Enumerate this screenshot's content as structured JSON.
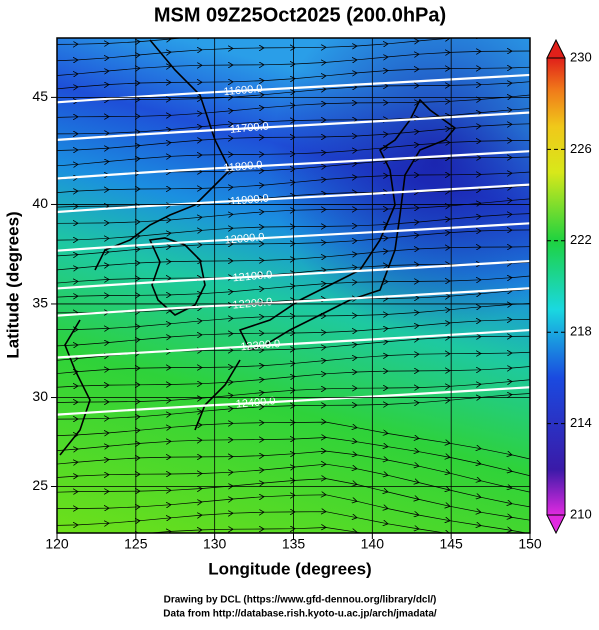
{
  "title": "MSM 09Z25Oct2025 (200.0hPa)",
  "x_axis": {
    "label": "Longitude (degrees)",
    "lim": [
      120,
      150
    ],
    "ticks": [
      120,
      125,
      130,
      135,
      140,
      145,
      150
    ]
  },
  "y_axis": {
    "label": "Latitude  (degrees)",
    "lim": [
      22.3,
      47.6
    ],
    "ticks": [
      25,
      30,
      35,
      40,
      45
    ]
  },
  "colorbar": {
    "lim": [
      210,
      230
    ],
    "ticks": [
      210,
      214,
      218,
      222,
      226,
      230
    ]
  },
  "contours": [
    {
      "value": 11600,
      "label": "11600.0",
      "lon": 131.8,
      "lat": 45.3
    },
    {
      "value": 11700,
      "label": "11700.0",
      "lon": 132.2,
      "lat": 43.6
    },
    {
      "value": 11800,
      "label": "11800.0",
      "lon": 131.8,
      "lat": 41.8
    },
    {
      "value": 11900,
      "label": "11900.0",
      "lon": 132.2,
      "lat": 40.2
    },
    {
      "value": 12000,
      "label": "12000.0",
      "lon": 131.9,
      "lat": 38.3
    },
    {
      "value": 12100,
      "label": "12100.0",
      "lon": 132.4,
      "lat": 36.4
    },
    {
      "value": 12200,
      "label": "12200.0",
      "lon": 132.4,
      "lat": 35.0
    },
    {
      "value": 12300,
      "label": "12300.0",
      "lon": 132.9,
      "lat": 32.8
    },
    {
      "value": 12400,
      "label": "12400.0",
      "lon": 132.6,
      "lat": 29.7
    }
  ],
  "footer": [
    "Drawing by DCL (https://www.gfd-dennou.org/library/dcl/)",
    "Data from http://database.rish.kyoto-u.ac.jp/arch/jmadata/"
  ]
}
